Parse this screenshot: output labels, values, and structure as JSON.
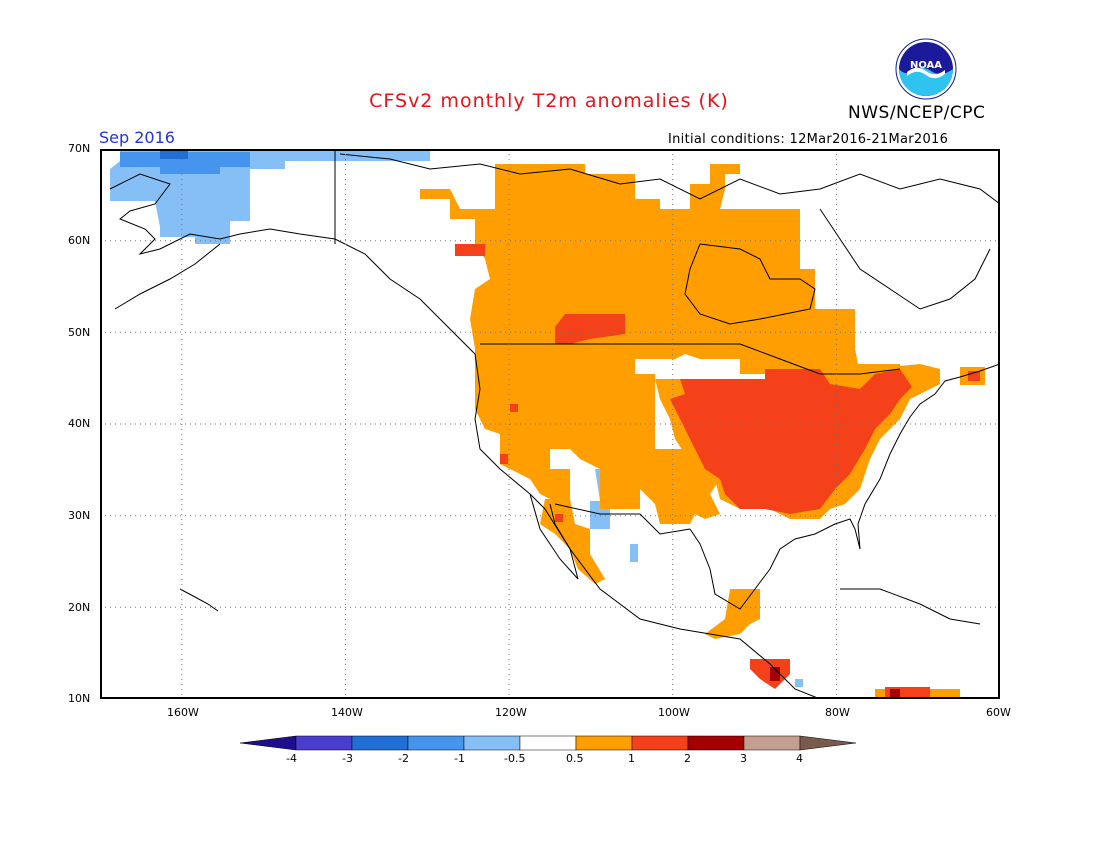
{
  "header": {
    "title": "CFSv2 monthly T2m anomalies (K)",
    "agency": "NWS/NCEP/CPC",
    "logo_text": "NOAA",
    "valid_month": "Sep 2016",
    "initial_conditions": "Initial conditions: 12Mar2016-21Mar2016"
  },
  "map": {
    "lon_range": [
      -170,
      -60
    ],
    "lat_range": [
      10,
      70
    ],
    "lat_labels": [
      "70N",
      "60N",
      "50N",
      "40N",
      "30N",
      "20N",
      "10N"
    ],
    "lon_labels": [
      "160W",
      "140W",
      "120W",
      "100W",
      "80W",
      "60W"
    ],
    "grid": "dotted",
    "regions": [
      {
        "name": "Alaska west",
        "anomaly_class": "-1 to -0.5"
      },
      {
        "name": "Alaska north coast",
        "anomaly_class": "-2 to -1"
      },
      {
        "name": "Northern Canada",
        "anomaly_class": "0.5 to 1"
      },
      {
        "name": "Western US",
        "anomaly_class": "0.5 to 1"
      },
      {
        "name": "Eastern US",
        "anomaly_class": "1 to 2"
      },
      {
        "name": "Lower Mississippi Valley",
        "anomaly_class": "1 to 2"
      },
      {
        "name": "Southwest US / NW Mexico",
        "anomaly_class": "-1 to -0.5"
      },
      {
        "name": "Central America",
        "anomaly_class": "2 to 3"
      }
    ]
  },
  "colorbar": {
    "ticks": [
      "-4",
      "-3",
      "-2",
      "-1",
      "-0.5",
      "0.5",
      "1",
      "2",
      "3",
      "4"
    ],
    "colors": [
      "#1e0d8c",
      "#4a3ccd",
      "#1f6fd6",
      "#4594ed",
      "#86bff6",
      "#ffffff",
      "#ff9e00",
      "#f5411a",
      "#a50000",
      "#c49f8f",
      "#7a5a4a"
    ]
  },
  "colors": {
    "title": "#e8121a",
    "month": "#2233dd",
    "warm1": "#ff9e00",
    "warm2": "#f5411a",
    "warm3": "#a50000",
    "cool1": "#86bff6",
    "cool2": "#4594ed",
    "cool3": "#1f6fd6"
  }
}
